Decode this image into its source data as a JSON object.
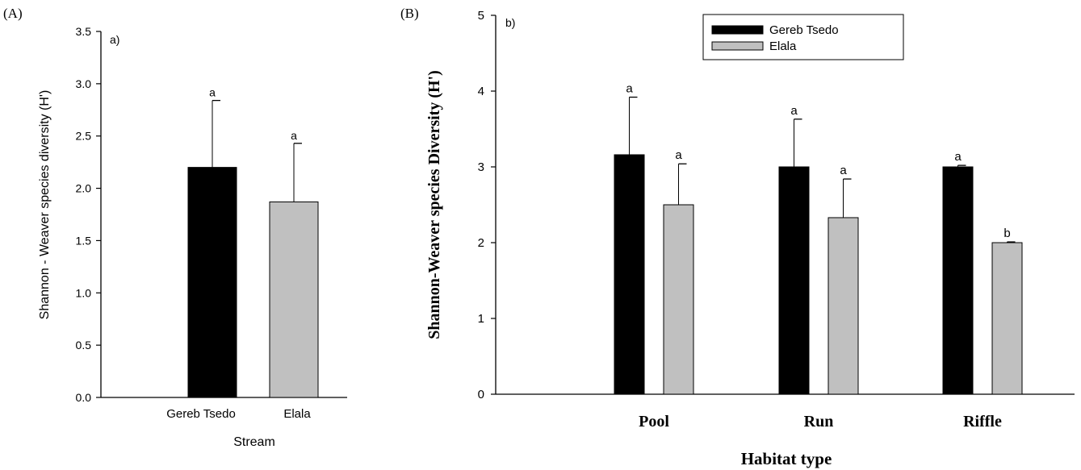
{
  "panel_labels": {
    "a": "(A)",
    "b": "(B)"
  },
  "colors": {
    "gereb_tsedo": "#000000",
    "elala": "#c0c0c0",
    "axis": "#000000"
  },
  "chart_data": [
    {
      "type": "bar",
      "tag": "a)",
      "categories": [
        "Gereb Tsedo",
        "Elala"
      ],
      "values": [
        2.2,
        1.87
      ],
      "errors": [
        0.64,
        0.56
      ],
      "letters": [
        "a",
        "a"
      ],
      "xlabel": "Stream",
      "ylabel": "Shannon - Weaver species diversity (H')",
      "ylim": [
        0,
        3.5
      ],
      "yticks": [
        "0.0",
        "0.5",
        "1.0",
        "1.5",
        "2.0",
        "2.5",
        "3.0",
        "3.5"
      ],
      "grid": false
    },
    {
      "type": "bar",
      "tag": "b)",
      "categories": [
        "Pool",
        "Run",
        "Riffle"
      ],
      "series": [
        {
          "name": "Gereb Tsedo",
          "values": [
            3.16,
            3.0,
            3.0
          ],
          "errors": [
            0.76,
            0.63,
            0.02
          ],
          "letters": [
            "a",
            "a",
            "a"
          ]
        },
        {
          "name": "Elala",
          "values": [
            2.5,
            2.33,
            2.0
          ],
          "errors": [
            0.54,
            0.51,
            0.01
          ],
          "letters": [
            "a",
            "a",
            "b"
          ]
        }
      ],
      "xlabel": "Habitat type",
      "ylabel": "Shannon-Weaver species Diversity (H')",
      "ylim": [
        0,
        5
      ],
      "yticks": [
        "0",
        "1",
        "2",
        "3",
        "4",
        "5"
      ],
      "legend": "top-center",
      "grid": false
    }
  ]
}
